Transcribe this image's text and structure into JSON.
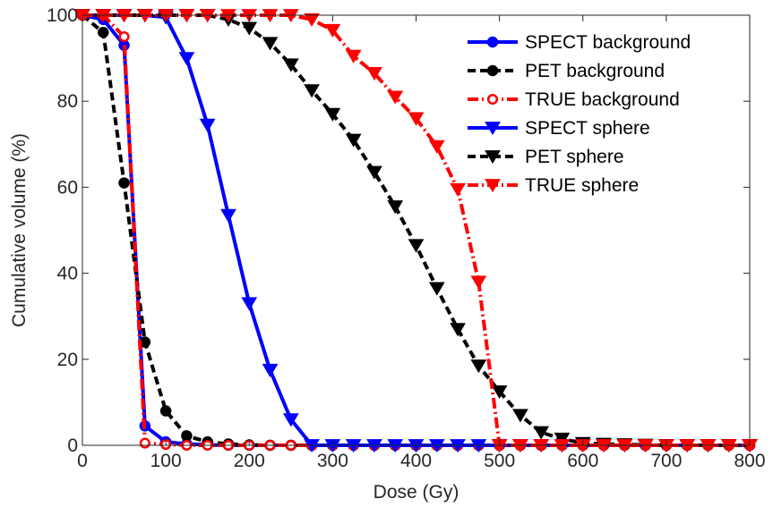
{
  "chart_data": {
    "type": "line",
    "xlabel": "Dose (Gy)",
    "ylabel": "Cumulative volume (%)",
    "xlim": [
      0,
      800
    ],
    "ylim": [
      0,
      100
    ],
    "xticks": [
      0,
      100,
      200,
      300,
      400,
      500,
      600,
      700,
      800
    ],
    "yticks": [
      0,
      20,
      40,
      60,
      80,
      100
    ],
    "grid": false,
    "legend_position": "top-right",
    "series": [
      {
        "name": "SPECT background",
        "color": "#0000ff",
        "dash": "solid",
        "marker": "circle-filled",
        "x": [
          0,
          25,
          50,
          75,
          100,
          125,
          150,
          175,
          200,
          225,
          250,
          275,
          300,
          325,
          350,
          375,
          400,
          425,
          450,
          475,
          500,
          525,
          550,
          575,
          600,
          625,
          650,
          675,
          700,
          725,
          750,
          775,
          800
        ],
        "y": [
          100,
          99,
          93,
          4.5,
          0.8,
          0.3,
          0.1,
          0,
          0,
          0,
          0,
          0,
          0,
          0,
          0,
          0,
          0,
          0,
          0,
          0,
          0,
          0,
          0,
          0,
          0,
          0,
          0,
          0,
          0,
          0,
          0,
          0,
          0
        ]
      },
      {
        "name": "PET background",
        "color": "#000000",
        "dash": "dashed",
        "marker": "circle-filled",
        "x": [
          0,
          25,
          50,
          75,
          100,
          125,
          150,
          175,
          200,
          225,
          250,
          275,
          300,
          325,
          350,
          375,
          400,
          425,
          450,
          475,
          500,
          525,
          550,
          575,
          600,
          625,
          650,
          675,
          700,
          725,
          750,
          775,
          800
        ],
        "y": [
          100,
          96,
          61,
          24,
          8,
          2.2,
          0.8,
          0.3,
          0.1,
          0,
          0,
          0,
          0,
          0,
          0,
          0,
          0,
          0,
          0,
          0,
          0,
          0,
          0,
          0,
          0,
          0,
          0,
          0,
          0,
          0,
          0,
          0,
          0
        ]
      },
      {
        "name": "TRUE background",
        "color": "#ff0000",
        "dash": "dashdot",
        "marker": "circle-open",
        "x": [
          0,
          25,
          50,
          75,
          100,
          125,
          150,
          175,
          200,
          225,
          250,
          275,
          300,
          325,
          350,
          375,
          400,
          425,
          450,
          475,
          500,
          525,
          550,
          575,
          600,
          625,
          650,
          675,
          700,
          725,
          750,
          775,
          800
        ],
        "y": [
          100,
          100,
          95,
          0.5,
          0.2,
          0,
          0,
          0,
          0,
          0,
          0,
          0,
          0,
          0,
          0,
          0,
          0,
          0,
          0,
          0,
          0,
          0,
          0,
          0,
          0,
          0,
          0,
          0,
          0,
          0,
          0,
          0,
          0
        ]
      },
      {
        "name": "SPECT sphere",
        "color": "#0000ff",
        "dash": "solid",
        "marker": "triangle-down",
        "x": [
          0,
          25,
          50,
          75,
          100,
          125,
          150,
          175,
          200,
          225,
          250,
          275,
          300,
          325,
          350,
          375,
          400,
          425,
          450,
          475,
          500,
          525,
          550,
          575,
          600,
          625,
          650,
          675,
          700,
          725,
          750,
          775,
          800
        ],
        "y": [
          100,
          100,
          100,
          100,
          99.5,
          90,
          74.5,
          53.5,
          33,
          17.5,
          6,
          0,
          0,
          0,
          0,
          0,
          0,
          0,
          0,
          0,
          0,
          0,
          0,
          0,
          0,
          0,
          0,
          0,
          0,
          0,
          0,
          0,
          0
        ]
      },
      {
        "name": "PET sphere",
        "color": "#000000",
        "dash": "dashed",
        "marker": "triangle-down",
        "x": [
          0,
          25,
          50,
          75,
          100,
          125,
          150,
          175,
          200,
          225,
          250,
          275,
          300,
          325,
          350,
          375,
          400,
          425,
          450,
          475,
          500,
          525,
          550,
          575,
          600,
          625,
          650,
          675,
          700,
          725,
          750,
          775,
          800
        ],
        "y": [
          100,
          100,
          100,
          100,
          100,
          100,
          100,
          99,
          97,
          93.5,
          88.5,
          82.5,
          77,
          71,
          63.5,
          55.5,
          46.5,
          36.5,
          27,
          18.5,
          12.5,
          7,
          3,
          1.5,
          0.5,
          0.3,
          0.2,
          0.1,
          0,
          0,
          0,
          0,
          0
        ]
      },
      {
        "name": "TRUE sphere",
        "color": "#ff0000",
        "dash": "dashdot",
        "marker": "triangle-down",
        "x": [
          0,
          25,
          50,
          75,
          100,
          125,
          150,
          175,
          200,
          225,
          250,
          275,
          300,
          325,
          350,
          375,
          400,
          425,
          450,
          475,
          500,
          525,
          550,
          575,
          600,
          625,
          650,
          675,
          700,
          725,
          750,
          775,
          800
        ],
        "y": [
          100,
          100,
          100,
          100,
          100,
          100,
          100,
          100,
          100,
          100,
          100,
          99,
          96.5,
          90.5,
          86.5,
          81,
          76,
          69.5,
          59.5,
          38,
          0,
          0,
          0,
          0,
          0,
          0,
          0,
          0,
          0,
          0,
          0,
          0,
          0
        ]
      }
    ]
  }
}
